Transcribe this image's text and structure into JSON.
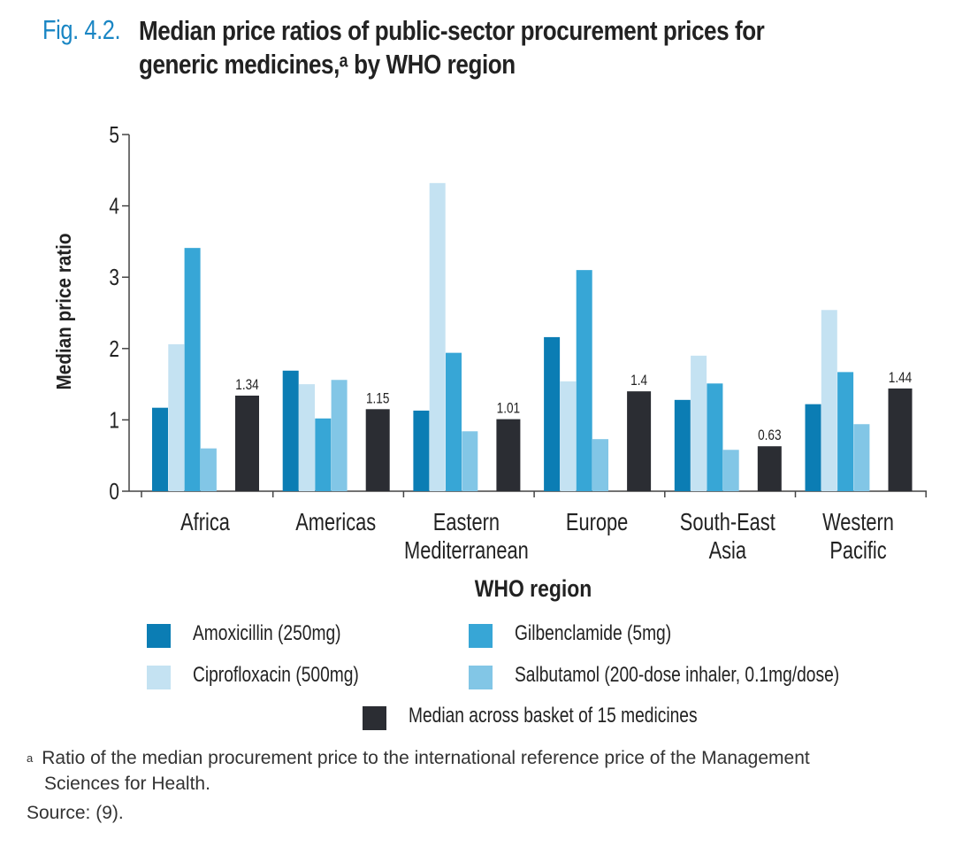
{
  "figure_label": "Fig. 4.2.",
  "title_line1": "Median price ratios of public-sector procurement prices for",
  "title_line2": "generic medicines,ᵃ by WHO region",
  "chart_data": {
    "type": "bar",
    "title": "Median price ratios of public-sector procurement prices for generic medicines, by WHO region",
    "xlabel": "WHO region",
    "ylabel": "Median price ratio",
    "ylim": [
      0,
      5
    ],
    "yticks": [
      "0",
      "1",
      "2",
      "3",
      "4",
      "5"
    ],
    "categories": [
      [
        "Africa"
      ],
      [
        "Americas"
      ],
      [
        "Eastern",
        "Mediterranean"
      ],
      [
        "Europe"
      ],
      [
        "South-East",
        "Asia"
      ],
      [
        "Western",
        "Pacific"
      ]
    ],
    "series": [
      {
        "name": "Amoxicillin (250mg)",
        "color": "#0b7db4",
        "values": [
          1.17,
          1.69,
          1.13,
          2.16,
          1.28,
          1.22
        ]
      },
      {
        "name": "Ciprofloxacin (500mg)",
        "color": "#c4e2f2",
        "values": [
          2.06,
          1.5,
          4.32,
          1.54,
          1.9,
          2.54
        ]
      },
      {
        "name": "Gilbenclamide (5mg)",
        "color": "#37a6d6",
        "values": [
          3.41,
          1.02,
          1.94,
          3.1,
          1.51,
          1.67
        ]
      },
      {
        "name": "Salbutamol (200-dose inhaler, 0.1mg/dose)",
        "color": "#82c6e6",
        "values": [
          0.6,
          1.56,
          0.84,
          0.73,
          0.58,
          0.94
        ]
      },
      {
        "name": "Median across basket of 15 medicines",
        "color": "#2b2d33",
        "values": [
          1.34,
          1.15,
          1.01,
          1.4,
          0.63,
          1.44
        ],
        "labels": [
          "1.34",
          "1.15",
          "1.01",
          "1.4",
          "0.63",
          "1.44"
        ]
      }
    ],
    "legend_placement": "bottom",
    "grid": false
  },
  "footnote_marker": "a",
  "footnote_line1": "Ratio of the median procurement price to the international reference price of the Management",
  "footnote_line2": "Sciences for Health.",
  "source": "Source: (9)."
}
